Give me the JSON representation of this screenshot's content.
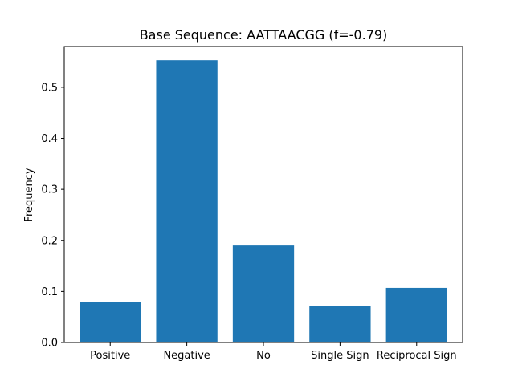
{
  "chart_data": {
    "type": "bar",
    "title": "Base Sequence: AATTAACGG (f=-0.79)",
    "xlabel": "",
    "ylabel": "Frequency",
    "categories": [
      "Positive",
      "Negative",
      "No",
      "Single Sign",
      "Reciprocal Sign"
    ],
    "values": [
      0.079,
      0.553,
      0.19,
      0.071,
      0.107
    ],
    "ylim": [
      0,
      0.58
    ],
    "yticks": [
      0.0,
      0.1,
      0.2,
      0.3,
      0.4,
      0.5
    ],
    "ytick_labels": [
      "0.0",
      "0.1",
      "0.2",
      "0.3",
      "0.4",
      "0.5"
    ],
    "grid": false,
    "bar_color": "#1f77b4"
  }
}
